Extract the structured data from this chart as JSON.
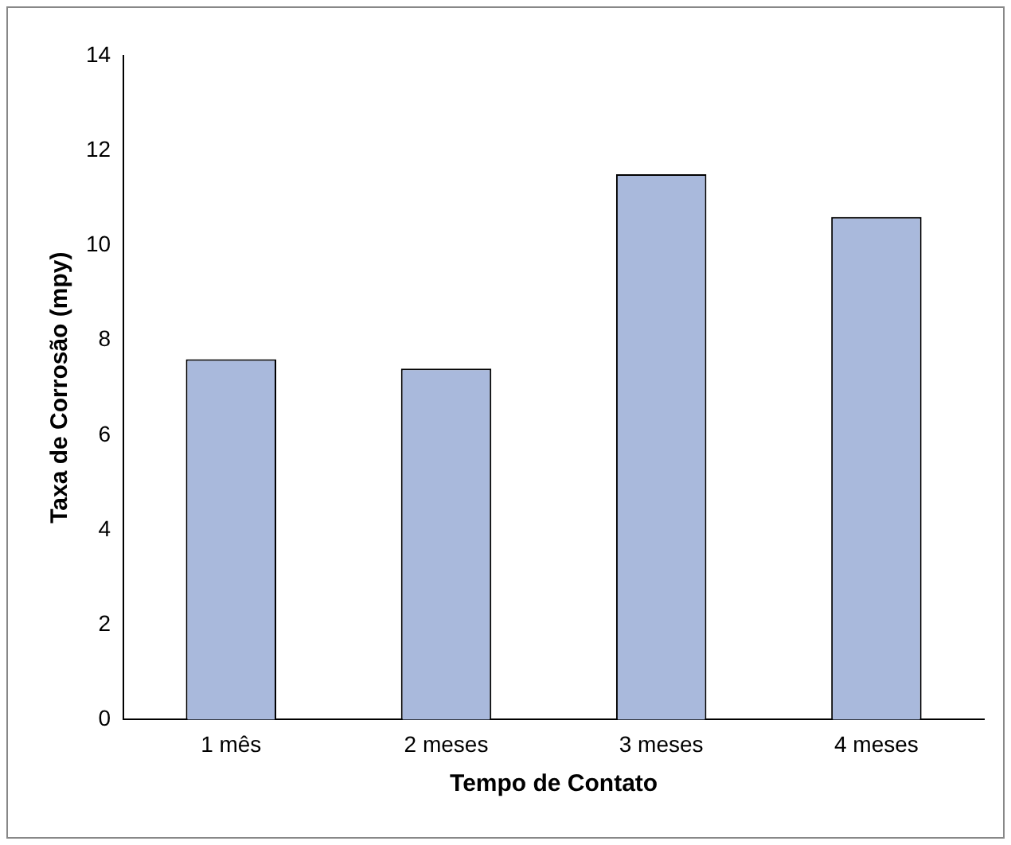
{
  "chart_data": {
    "type": "bar",
    "xlabel": "Tempo de Contato",
    "ylabel": "Taxa de Corrosão (mpy)",
    "categories": [
      "1 mês",
      "2 meses",
      "3 meses",
      "4 meses"
    ],
    "values": [
      7.6,
      7.4,
      11.5,
      10.6
    ],
    "color": "#a9b9dc",
    "ylim": [
      0,
      14
    ],
    "yticks": [
      0,
      2,
      4,
      6,
      8,
      10,
      12,
      14
    ],
    "grid": false,
    "legend": false
  }
}
